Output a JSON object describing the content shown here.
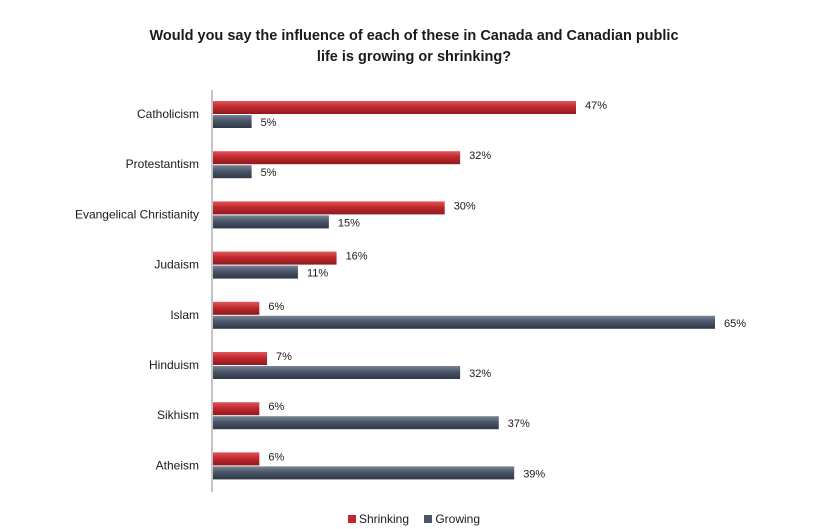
{
  "chart_data": {
    "type": "bar",
    "orientation": "horizontal",
    "title_line1": "Would you say the influence of each of these in Canada and Canadian public",
    "title_line2": "life is growing or shrinking?",
    "categories": [
      "Catholicism",
      "Protestantism",
      "Evangelical Christianity",
      "Judaism",
      "Islam",
      "Hinduism",
      "Sikhism",
      "Atheism"
    ],
    "series": [
      {
        "name": "Shrinking",
        "color": "#c0282d",
        "values": [
          47,
          32,
          30,
          16,
          6,
          7,
          6,
          6
        ],
        "labels": [
          "47%",
          "32%",
          "30%",
          "16%",
          "6%",
          "7%",
          "6%",
          "6%"
        ]
      },
      {
        "name": "Growing",
        "color": "#4a5568",
        "values": [
          5,
          5,
          15,
          11,
          65,
          32,
          37,
          39
        ],
        "labels": [
          "5%",
          "5%",
          "15%",
          "11%",
          "65%",
          "32%",
          "37%",
          "39%"
        ]
      }
    ],
    "xlim": [
      0,
      65
    ],
    "legend_position": "bottom",
    "grid": false
  }
}
